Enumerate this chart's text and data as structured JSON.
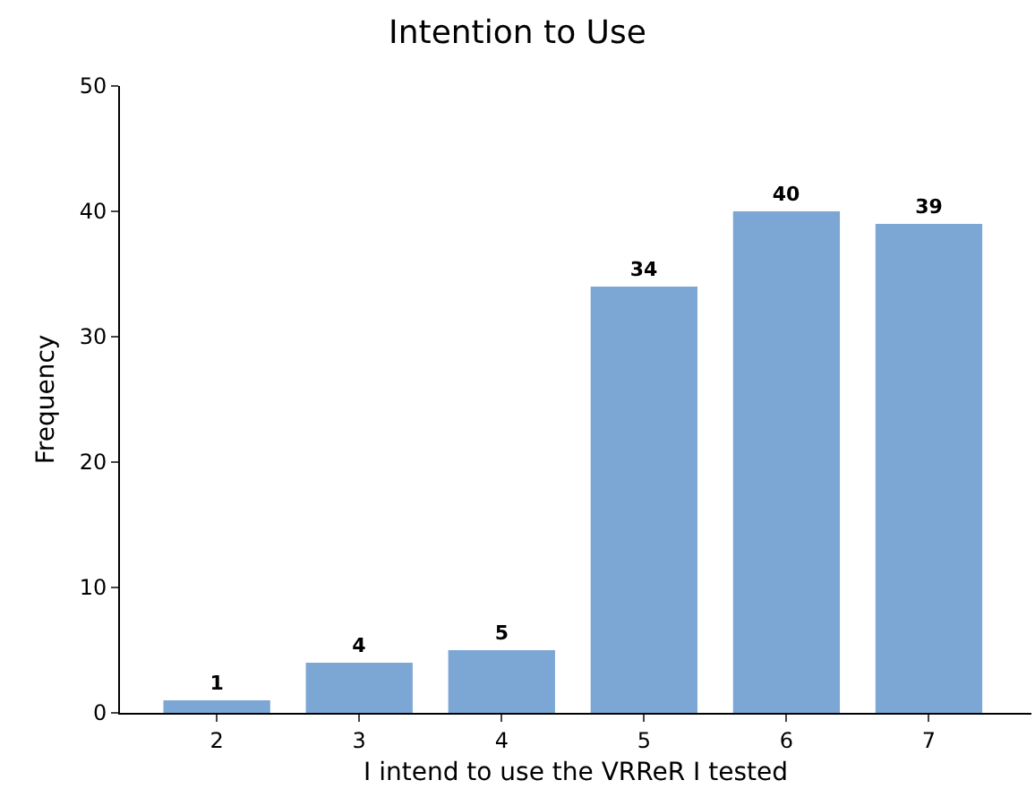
{
  "chart_data": {
    "type": "bar",
    "title": "Intention to Use",
    "xlabel": "I intend to use the VRReR I tested",
    "ylabel": "Frequency",
    "categories": [
      "2",
      "3",
      "4",
      "5",
      "6",
      "7"
    ],
    "values": [
      1,
      4,
      5,
      34,
      40,
      39
    ],
    "color": "#7ca6d4",
    "ylim": [
      0,
      50
    ],
    "yticks": [
      0,
      10,
      20,
      30,
      40,
      50
    ],
    "data_labels": true,
    "grid": false,
    "legend": false
  }
}
